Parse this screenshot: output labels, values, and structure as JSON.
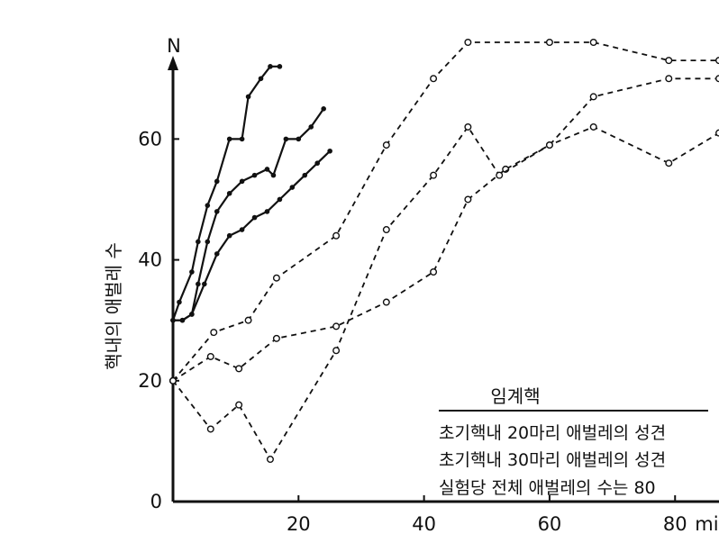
{
  "chart_data": {
    "type": "line",
    "title": "",
    "ylabel": "핵내의 애벌레 수",
    "yaxis_arrow_label": "N",
    "xunit": "min",
    "xlim": [
      0,
      87
    ],
    "ylim": [
      0,
      76
    ],
    "xticks": [
      {
        "value": 20,
        "label": "20"
      },
      {
        "value": 40,
        "label": "40"
      },
      {
        "value": 60,
        "label": "60"
      },
      {
        "value": 80,
        "label": "80"
      }
    ],
    "yticks": [
      {
        "value": 0,
        "label": "0"
      },
      {
        "value": 20,
        "label": "20"
      },
      {
        "value": 40,
        "label": "40"
      },
      {
        "value": 60,
        "label": "60"
      }
    ],
    "legend": {
      "position": "bottom-right",
      "title": "임계핵",
      "entries": [
        "초기핵내 20마리 애벌레의 성견",
        "초기핵내 30마리 애벌레의 성견",
        "실험당 전체 애벌레의 수는 80"
      ]
    },
    "series": [
      {
        "style": "solid",
        "marker": "dot",
        "x": [
          0,
          1,
          3,
          4,
          5.5,
          7,
          9,
          11,
          12,
          14,
          15.5,
          17
        ],
        "y": [
          30,
          33,
          38,
          43,
          49,
          53,
          60,
          60,
          67,
          70,
          72,
          72
        ]
      },
      {
        "style": "solid",
        "marker": "dot",
        "x": [
          0,
          1.5,
          3,
          4,
          5.5,
          7,
          9,
          11,
          13,
          15,
          16,
          18,
          20,
          22,
          24
        ],
        "y": [
          30,
          30,
          31,
          36,
          43,
          48,
          51,
          53,
          54,
          55,
          54,
          60,
          60,
          62,
          65
        ]
      },
      {
        "style": "solid",
        "marker": "dot",
        "x": [
          0,
          1.5,
          3,
          5,
          7,
          9,
          11,
          13,
          15,
          17,
          19,
          21,
          23,
          25
        ],
        "y": [
          30,
          30,
          31,
          36,
          41,
          44,
          45,
          47,
          48,
          50,
          52,
          54,
          56,
          58
        ]
      },
      {
        "style": "dashed",
        "marker": "circle",
        "x": [
          0,
          6.5,
          12,
          16.5,
          26,
          34,
          41.5,
          47,
          60,
          67,
          79,
          87
        ],
        "y": [
          20,
          28,
          30,
          37,
          44,
          59,
          70,
          76,
          76,
          76,
          73,
          73
        ]
      },
      {
        "style": "dashed",
        "marker": "circle",
        "x": [
          0,
          6,
          10.5,
          16.5,
          26,
          34,
          41.5,
          47,
          53,
          60,
          67,
          79,
          87
        ],
        "y": [
          20,
          24,
          22,
          27,
          29,
          33,
          38,
          50,
          55,
          59,
          67,
          70,
          70
        ]
      },
      {
        "style": "dashed",
        "marker": "circle",
        "x": [
          0,
          6,
          10.5,
          15.5,
          26,
          34,
          41.5,
          47,
          52,
          60,
          67,
          79,
          87
        ],
        "y": [
          20,
          12,
          16,
          7,
          25,
          45,
          54,
          62,
          54,
          59,
          62,
          56,
          61
        ]
      }
    ]
  }
}
